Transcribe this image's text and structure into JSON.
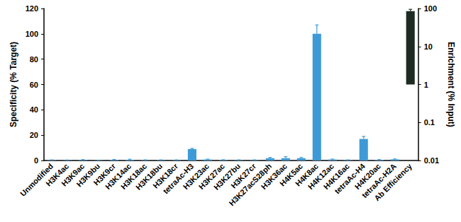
{
  "chart_data": {
    "type": "bar",
    "categories": [
      "Unmodified",
      "H3K4ac",
      "H3K9ac",
      "H3K9bu",
      "H3K9cr",
      "H3K14ac",
      "H3K18ac",
      "H3K18bu",
      "H3K18cr",
      "tetraAc-H3",
      "H3K23ac",
      "H3K27ac",
      "H3K27bu",
      "H3K27cr",
      "H3K27acS28ph",
      "H3K36ac",
      "H4K5ac",
      "H4K8ac",
      "H4K12ac",
      "H4K16ac",
      "tetraAc-H4",
      "H4K20ac",
      "tetraAc-H2A",
      "Ab Efficiency"
    ],
    "ylabel": "Specificity (% Target)",
    "y2label": "Enrichment (% Input)",
    "ylim": [
      0,
      120
    ],
    "yticks": [
      0,
      20,
      40,
      60,
      80,
      100,
      120
    ],
    "y2lim": [
      0.01,
      100
    ],
    "y2ticks": [
      0.01,
      0.1,
      1,
      10,
      100
    ],
    "log": "y2",
    "grid": false,
    "series": [
      {
        "color": "#3d9ad6",
        "values": [
          0.3,
          0.2,
          0.4,
          0.2,
          0.5,
          0.6,
          0.3,
          0.3,
          0.3,
          9,
          0.8,
          0.4,
          0.3,
          0.3,
          1.8,
          1.8,
          1.8,
          100,
          0.8,
          0.3,
          17,
          0.5,
          0.9,
          null
        ],
        "errors": [
          0.2,
          0.2,
          0.3,
          0.1,
          0.3,
          0.4,
          0.2,
          0.2,
          0.2,
          0.6,
          0.3,
          0.2,
          0.2,
          0.2,
          0.6,
          1.2,
          0.6,
          7,
          0.3,
          0.2,
          2,
          0.2,
          0.3,
          null
        ]
      },
      {
        "color": "#1e2b22",
        "axis": "y2",
        "values": [
          null,
          null,
          null,
          null,
          null,
          null,
          null,
          null,
          null,
          null,
          null,
          null,
          null,
          null,
          null,
          null,
          null,
          null,
          null,
          null,
          null,
          null,
          null,
          85
        ],
        "errors": [
          null,
          null,
          null,
          null,
          null,
          null,
          null,
          null,
          null,
          null,
          null,
          null,
          null,
          null,
          null,
          null,
          null,
          null,
          null,
          null,
          null,
          null,
          null,
          10
        ]
      }
    ]
  }
}
